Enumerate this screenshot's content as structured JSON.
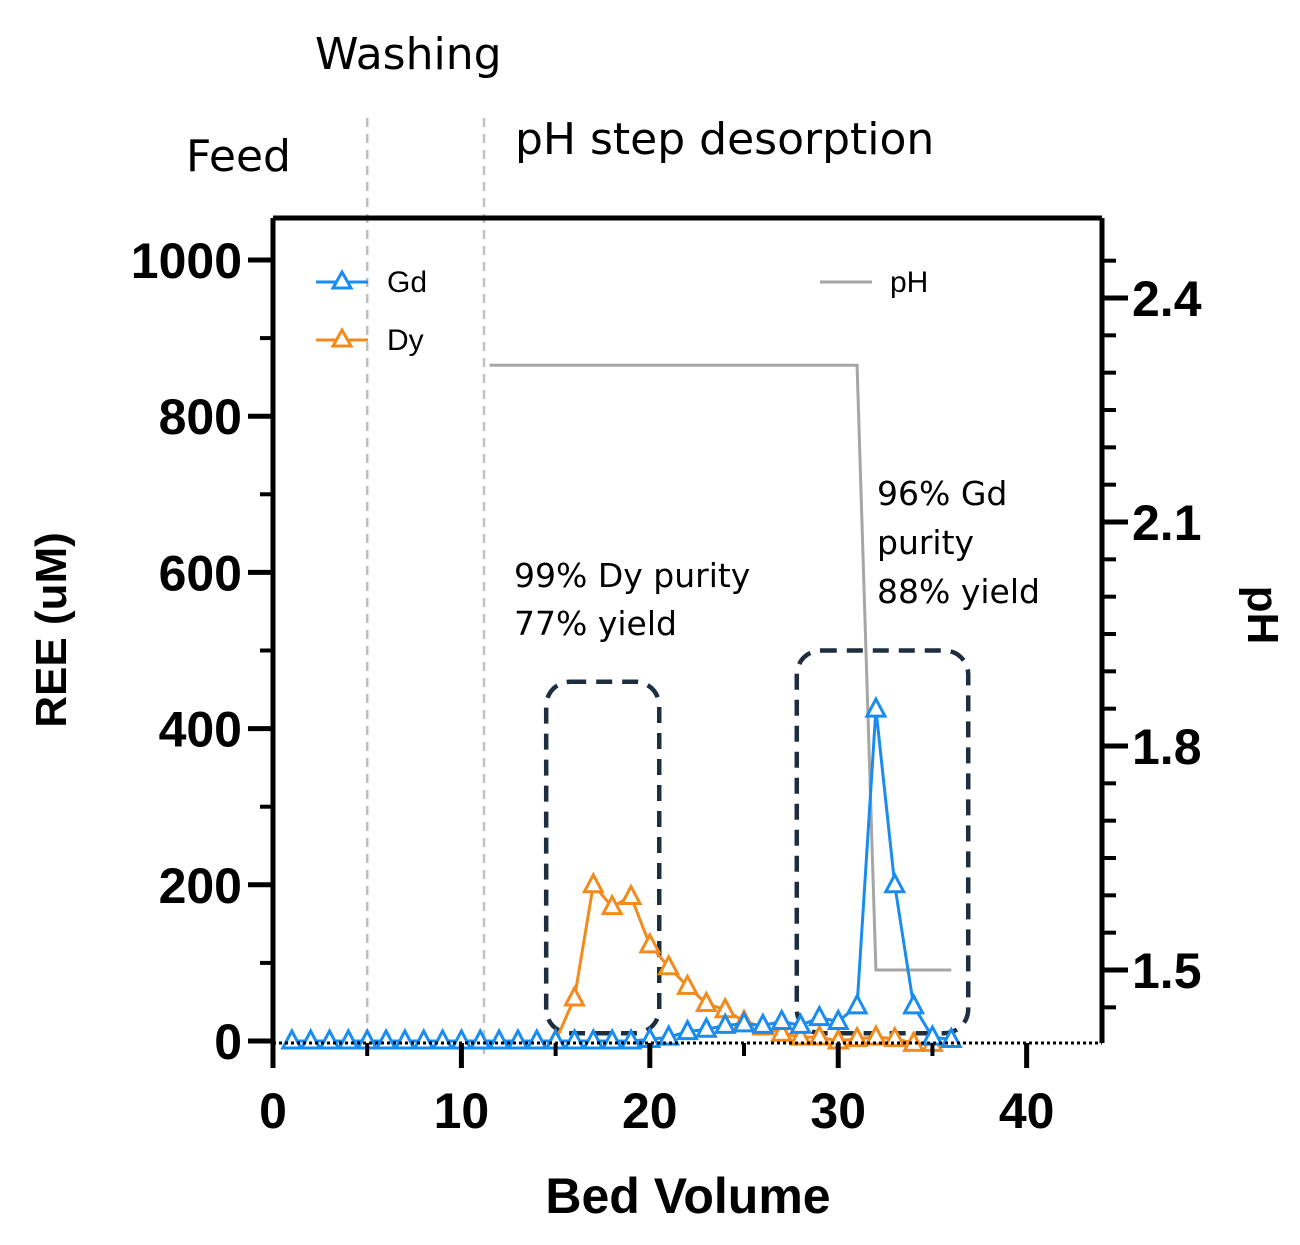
{
  "chart_data": {
    "type": "line",
    "title": "",
    "xlabel": "Bed Volume",
    "ylabel": "REE (uM)",
    "y2label": "pH",
    "xlim": [
      0,
      44
    ],
    "ylim": [
      0,
      1000
    ],
    "y2lim": [
      1.41,
      2.5
    ],
    "x_ticks": [
      0,
      10,
      20,
      30,
      40
    ],
    "y_ticks": [
      0,
      200,
      400,
      600,
      800,
      1000
    ],
    "y2_ticks": [
      1.5,
      1.8,
      2.1,
      2.4
    ],
    "x_tick_labels": [
      "0",
      "10",
      "20",
      "30",
      "40"
    ],
    "y_tick_labels": [
      "0",
      "200",
      "400",
      "600",
      "800",
      "1000"
    ],
    "y2_tick_labels": [
      "1.5",
      "1.8",
      "2.1",
      "2.4"
    ],
    "grid": false,
    "legend_position": "top-left and top-right",
    "colors": {
      "Gd": "#1a8cf0",
      "Dy": "#f28a1c",
      "pH": "#a6a6a6",
      "box": "#1e2d3f",
      "divider": "#c0c0c0"
    },
    "phase_labels": {
      "feed": "Feed",
      "washing": "Washing",
      "desorption": "pH step desorption"
    },
    "phase_boundaries": [
      5,
      11.2
    ],
    "series": [
      {
        "name": "Gd",
        "axis": "left",
        "marker": "open-triangle",
        "x": [
          1,
          2,
          3,
          4,
          5,
          6,
          7,
          8,
          9,
          10,
          11,
          12,
          13,
          14,
          15,
          16,
          17,
          18,
          19,
          20,
          21,
          22,
          23,
          24,
          25,
          26,
          27,
          28,
          29,
          30,
          31,
          32,
          33,
          34,
          35,
          36
        ],
        "values": [
          0,
          0,
          0,
          0,
          0,
          0,
          0,
          0,
          0,
          0,
          0,
          0,
          0,
          0,
          0,
          0,
          0,
          0,
          0,
          2,
          5,
          12,
          15,
          20,
          22,
          20,
          25,
          20,
          30,
          25,
          45,
          425,
          200,
          45,
          5,
          2
        ]
      },
      {
        "name": "Dy",
        "axis": "left",
        "marker": "open-triangle",
        "x": [
          15,
          16,
          17,
          18,
          19,
          20,
          21,
          22,
          23,
          24,
          25,
          26,
          27,
          28,
          29,
          30,
          31,
          32,
          33,
          34,
          35
        ],
        "values": [
          0,
          55,
          200,
          172,
          185,
          123,
          95,
          70,
          48,
          40,
          25,
          18,
          10,
          5,
          5,
          0,
          3,
          5,
          3,
          -3,
          -3
        ]
      },
      {
        "name": "pH",
        "axis": "right",
        "marker": "none",
        "x": [
          11.5,
          31,
          32,
          36
        ],
        "values": [
          2.31,
          2.31,
          1.5,
          1.5
        ]
      }
    ],
    "annotations": [
      {
        "id": "dy",
        "lines": [
          "99% Dy purity",
          "77% yield"
        ]
      },
      {
        "id": "gd",
        "lines": [
          "96% Gd",
          "purity",
          "88% yield"
        ]
      }
    ],
    "highlight_boxes": [
      {
        "x": [
          14.5,
          20.5
        ],
        "y": [
          10,
          460
        ]
      },
      {
        "x": [
          27.8,
          36.9
        ],
        "y": [
          10,
          500
        ]
      }
    ]
  }
}
